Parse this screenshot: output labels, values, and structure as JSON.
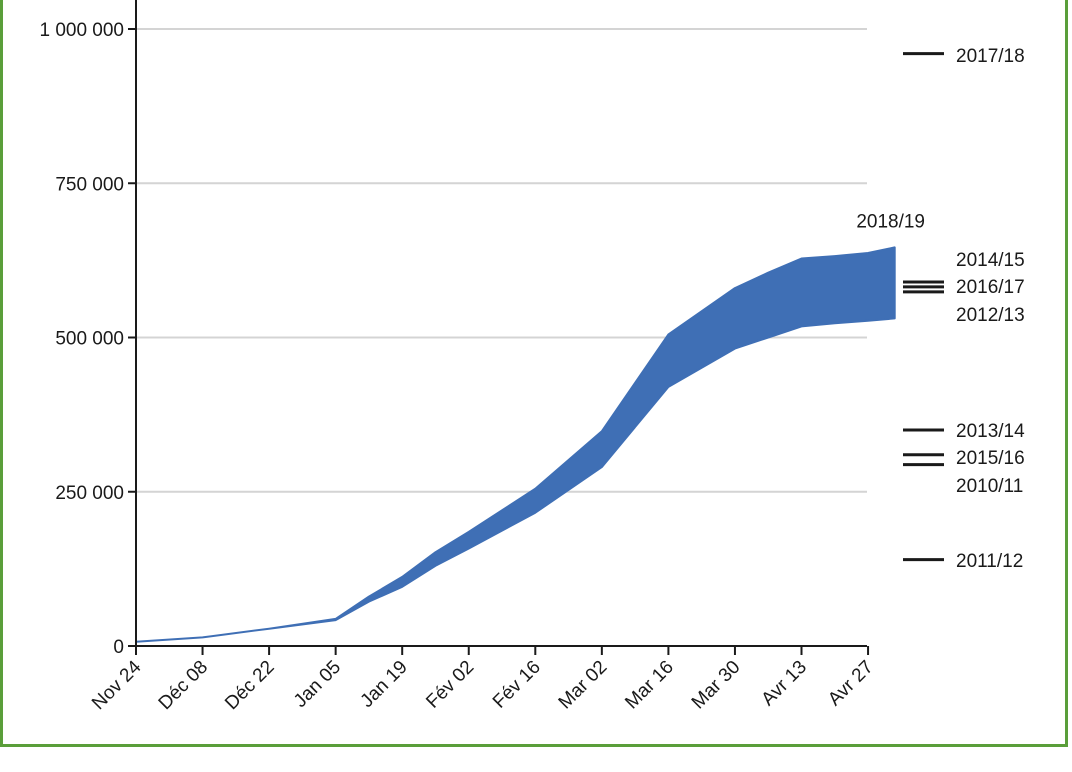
{
  "chart_data": {
    "type": "area",
    "y_ticks": [
      "0",
      "250 000",
      "500 000",
      "750 000",
      "1 000 000"
    ],
    "y_tick_values": [
      0,
      250000,
      500000,
      750000,
      1000000
    ],
    "ylim": [
      0,
      1050000
    ],
    "x_ticks": [
      "Nov 24",
      "Déc 08",
      "Déc 22",
      "Jan 05",
      "Jan 19",
      "Fév 02",
      "Fév 16",
      "Mar 02",
      "Mar 16",
      "Mar 30",
      "Avr 13",
      "Avr 27"
    ],
    "grid": true,
    "band": {
      "name": "2018/19",
      "color": "#3f6fb5",
      "x_index": [
        0,
        1,
        2,
        3,
        3.5,
        4,
        4.5,
        5,
        6,
        7,
        8,
        9,
        9.5,
        10,
        10.5,
        11,
        11.4
      ],
      "upper": [
        7000,
        14000,
        28000,
        44000,
        80000,
        112000,
        152000,
        185000,
        255000,
        348000,
        505000,
        580000,
        605000,
        628000,
        632000,
        637000,
        646000
      ],
      "lower": [
        7000,
        14000,
        28000,
        42000,
        72000,
        96000,
        130000,
        158000,
        216000,
        290000,
        420000,
        482000,
        500000,
        518000,
        523000,
        527000,
        531000
      ]
    },
    "reference_marks": [
      {
        "label": "2017/18",
        "value": 960000
      },
      {
        "label": "2014/15",
        "value": 590000
      },
      {
        "label": "2016/17",
        "value": 582000
      },
      {
        "label": "2012/13",
        "value": 574000
      },
      {
        "label": "2013/14",
        "value": 350000
      },
      {
        "label": "2015/16",
        "value": 310000
      },
      {
        "label": "2010/11",
        "value": 294000
      },
      {
        "label": "2011/12",
        "value": 140000
      }
    ],
    "reference_line_color": "#1a1a1a"
  }
}
